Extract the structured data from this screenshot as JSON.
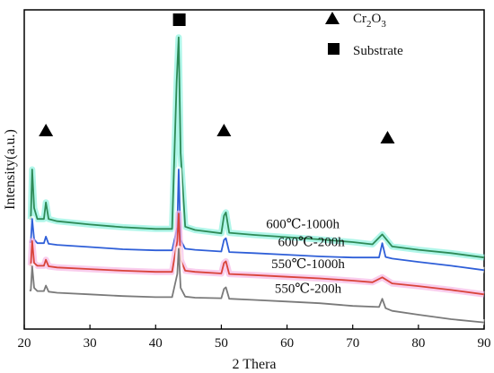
{
  "chart_data": {
    "type": "line",
    "xlabel": "2 Thera",
    "ylabel": "Intensity(a.u.)",
    "xlim": [
      20,
      90
    ],
    "xticks": [
      20,
      30,
      40,
      50,
      60,
      70,
      80,
      90
    ],
    "yticks": [],
    "legend": {
      "placement": "top-right",
      "entries": [
        {
          "marker": "triangle",
          "label_main": "Cr",
          "label_sub1": "2",
          "label_mid": "O",
          "label_sub2": "3"
        },
        {
          "marker": "square",
          "label": "Substrate"
        }
      ]
    },
    "series": [
      {
        "name": "600℃-1000h",
        "color": "#2e8b57",
        "glow": "#8ff2e0",
        "x": [
          20.8,
          21.0,
          21.2,
          21.5,
          22,
          23,
          23.3,
          23.7,
          25,
          30,
          35,
          40,
          42.5,
          43.2,
          43.5,
          43.8,
          44.5,
          46,
          50,
          50.4,
          50.7,
          51.2,
          55,
          60,
          65,
          70,
          73,
          74.5,
          76,
          80,
          85,
          90
        ],
        "y": [
          14,
          14,
          23,
          16,
          14,
          14,
          17,
          14,
          13.6,
          13.0,
          12.5,
          12.2,
          12.2,
          39,
          47,
          26,
          12.6,
          12.0,
          11.4,
          14.6,
          15.2,
          11.5,
          11.1,
          10.7,
          10.3,
          9.8,
          9.4,
          11.2,
          9.0,
          8.4,
          7.8,
          7.0
        ]
      },
      {
        "name": "600℃-200h",
        "color": "#2f5fd8",
        "glow": "#ffffff",
        "x": [
          20.8,
          21.0,
          21.2,
          21.5,
          22,
          23,
          23.3,
          23.7,
          25,
          30,
          35,
          40,
          42.5,
          43.3,
          43.5,
          43.8,
          44.5,
          46,
          50,
          50.4,
          50.7,
          51.2,
          55,
          60,
          65,
          70,
          74.0,
          74.5,
          75.0,
          76,
          80,
          85,
          90
        ],
        "y": [
          9.8,
          9.8,
          14,
          10.3,
          9.6,
          9.6,
          10.8,
          9.5,
          9.3,
          8.9,
          8.5,
          8.3,
          8.3,
          12.5,
          23,
          10.2,
          8.6,
          8.4,
          8.1,
          10.2,
          10.5,
          8.0,
          7.8,
          7.5,
          7.2,
          7.0,
          7.0,
          9.6,
          7.1,
          6.8,
          6.2,
          5.5,
          4.7
        ]
      },
      {
        "name": "550℃-1000h",
        "color": "#d9443a",
        "glow": "#f7b8e6",
        "x": [
          20.8,
          21.0,
          21.2,
          21.5,
          22,
          23,
          23.3,
          23.7,
          25,
          30,
          35,
          40,
          42.5,
          43.3,
          43.5,
          43.8,
          44.5,
          46,
          50,
          50.4,
          50.7,
          51.2,
          55,
          60,
          65,
          70,
          73,
          74.5,
          76,
          80,
          85,
          90
        ],
        "y": [
          5.6,
          5.6,
          10.0,
          6.0,
          5.5,
          5.5,
          6.6,
          5.4,
          5.2,
          4.9,
          4.6,
          4.4,
          4.4,
          10,
          15.0,
          6.6,
          4.6,
          4.4,
          4.1,
          6.0,
          6.3,
          4.0,
          3.8,
          3.5,
          3.2,
          2.8,
          2.5,
          3.4,
          2.3,
          1.8,
          1.1,
          0.3
        ]
      },
      {
        "name": "550℃-200h",
        "color": "#7a7a7a",
        "glow": "#ffffff",
        "x": [
          20.8,
          21.0,
          21.2,
          21.5,
          22,
          23,
          23.3,
          23.7,
          25,
          30,
          35,
          40,
          42.5,
          43.3,
          43.5,
          43.8,
          44.5,
          46,
          50,
          50.4,
          50.7,
          51.2,
          55,
          60,
          65,
          70,
          74.0,
          74.5,
          75.0,
          76,
          80,
          85,
          90
        ],
        "y": [
          1.0,
          1.0,
          5.4,
          1.5,
          0.9,
          0.9,
          1.9,
          0.8,
          0.6,
          0.3,
          0.0,
          -0.2,
          -0.2,
          4.0,
          8.6,
          1.5,
          -0.1,
          -0.3,
          -0.4,
          1.3,
          1.6,
          -0.5,
          -0.7,
          -1.0,
          -1.3,
          -1.8,
          -2.0,
          -0.5,
          -2.2,
          -2.7,
          -3.4,
          -4.2,
          -4.8
        ]
      }
    ],
    "markers": [
      {
        "kind": "triangle",
        "x": 23.3,
        "series": "600℃-1000h"
      },
      {
        "kind": "square",
        "x": 43.6,
        "series": "600℃-1000h"
      },
      {
        "kind": "triangle",
        "x": 50.4,
        "series": "600℃-1000h"
      },
      {
        "kind": "triangle",
        "x": 75.3,
        "series": "600℃-1000h"
      }
    ]
  }
}
